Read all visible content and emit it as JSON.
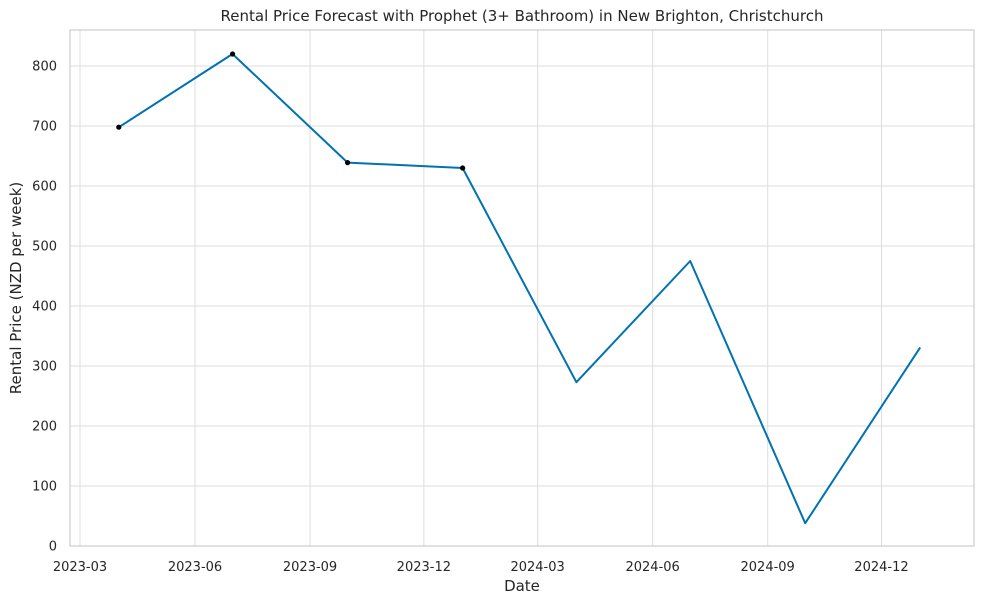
{
  "chart_data": {
    "type": "line",
    "title": "Rental Price Forecast with Prophet (3+ Bathroom) in New Brighton, Christchurch",
    "xlabel": "Date",
    "ylabel": "Rental Price (NZD per week)",
    "x_ticks": [
      "2023-03",
      "2023-06",
      "2023-09",
      "2023-12",
      "2024-03",
      "2024-06",
      "2024-09",
      "2024-12"
    ],
    "y_ticks": [
      0,
      100,
      200,
      300,
      400,
      500,
      600,
      700,
      800
    ],
    "ylim": [
      0,
      860
    ],
    "grid": true,
    "observed": {
      "x": [
        "2023-04-01",
        "2023-07-01",
        "2023-10-01",
        "2024-01-01"
      ],
      "y": [
        698,
        820,
        639,
        630
      ]
    },
    "series": [
      {
        "x": [
          "2023-04-01",
          "2023-07-01",
          "2023-10-01",
          "2024-01-01",
          "2024-04-01",
          "2024-07-01",
          "2024-10-01",
          "2025-01-01"
        ],
        "y": [
          698,
          820,
          639,
          630,
          273,
          475,
          38,
          331
        ]
      }
    ],
    "colors": {
      "forecast_line": "#0072b2",
      "observed_points": "#000000",
      "grid": "#dddddd",
      "frame": "#cccccc"
    }
  }
}
